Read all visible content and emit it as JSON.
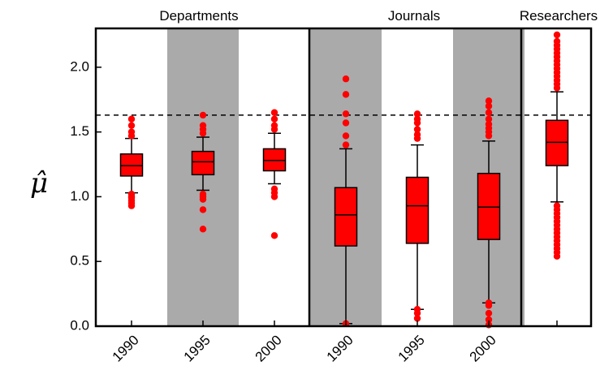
{
  "chart_data": {
    "type": "boxplot",
    "ylabel": "μ̂",
    "ylim": [
      0.0,
      2.3
    ],
    "yticks": [
      "0.0",
      "0.5",
      "1.0",
      "1.5",
      "2.0"
    ],
    "reference_line_y": 1.63,
    "groups": [
      {
        "label": "Departments",
        "categories": [
          "1990",
          "1995",
          "2000"
        ]
      },
      {
        "label": "Journals",
        "categories": [
          "1990",
          "1995",
          "2000"
        ]
      },
      {
        "label": "Researchers",
        "categories": [
          ""
        ]
      }
    ],
    "shaded_columns": [
      1,
      3,
      5
    ],
    "colors": {
      "box": "#ff0000",
      "shade": "#aaaaaa",
      "outlier": "#ff0000"
    },
    "boxes": [
      {
        "group": "Departments",
        "category": "1990",
        "q1": 1.16,
        "median": 1.24,
        "q3": 1.33,
        "whisker_low": 1.03,
        "whisker_high": 1.45,
        "outliers": [
          0.93,
          0.95,
          0.97,
          0.99,
          1.0,
          1.02,
          1.47,
          1.5,
          1.55,
          1.6
        ]
      },
      {
        "group": "Departments",
        "category": "1995",
        "q1": 1.17,
        "median": 1.27,
        "q3": 1.35,
        "whisker_low": 1.05,
        "whisker_high": 1.46,
        "outliers": [
          0.75,
          0.9,
          0.98,
          1.0,
          1.02,
          1.49,
          1.52,
          1.55,
          1.63
        ]
      },
      {
        "group": "Departments",
        "category": "2000",
        "q1": 1.2,
        "median": 1.28,
        "q3": 1.37,
        "whisker_low": 1.1,
        "whisker_high": 1.49,
        "outliers": [
          0.7,
          1.0,
          1.03,
          1.06,
          1.52,
          1.55,
          1.6,
          1.65
        ]
      },
      {
        "group": "Journals",
        "category": "1990",
        "q1": 0.62,
        "median": 0.86,
        "q3": 1.07,
        "whisker_low": 0.02,
        "whisker_high": 1.37,
        "outliers": [
          0.02,
          1.4,
          1.47,
          1.57,
          1.64,
          1.79,
          1.91
        ]
      },
      {
        "group": "Journals",
        "category": "1995",
        "q1": 0.64,
        "median": 0.93,
        "q3": 1.15,
        "whisker_low": 0.13,
        "whisker_high": 1.4,
        "outliers": [
          0.06,
          0.1,
          0.13,
          1.45,
          1.48,
          1.52,
          1.57,
          1.6,
          1.64
        ]
      },
      {
        "group": "Journals",
        "category": "2000",
        "q1": 0.67,
        "median": 0.92,
        "q3": 1.18,
        "whisker_low": 0.18,
        "whisker_high": 1.43,
        "outliers": [
          0.01,
          0.05,
          0.1,
          0.16,
          0.18,
          1.47,
          1.5,
          1.53,
          1.56,
          1.6,
          1.65,
          1.7,
          1.74
        ]
      },
      {
        "group": "Researchers",
        "category": "",
        "q1": 1.24,
        "median": 1.42,
        "q3": 1.59,
        "whisker_low": 0.96,
        "whisker_high": 1.81,
        "outliers": [
          0.54,
          0.57,
          0.6,
          0.63,
          0.66,
          0.69,
          0.72,
          0.75,
          0.78,
          0.81,
          0.84,
          0.87,
          0.9,
          0.93,
          1.84,
          1.87,
          1.9,
          1.93,
          1.96,
          1.99,
          2.02,
          2.05,
          2.08,
          2.11,
          2.14,
          2.17,
          2.2,
          2.25
        ]
      }
    ]
  }
}
